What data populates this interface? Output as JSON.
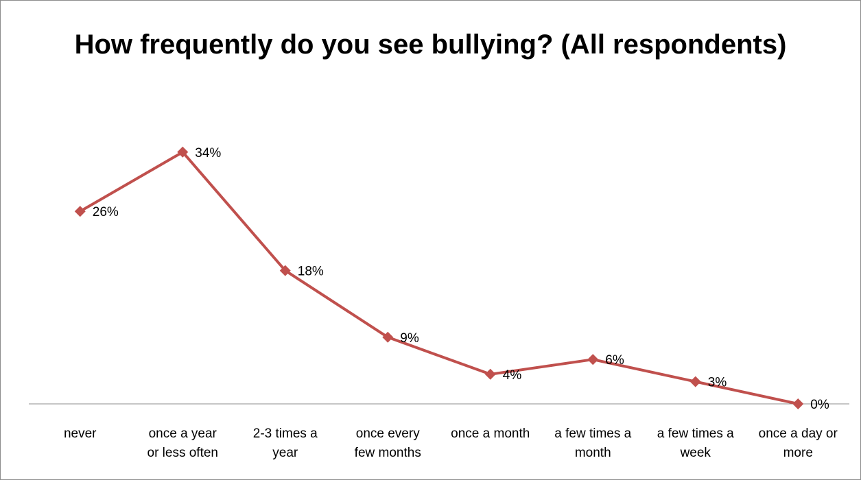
{
  "chart_data": {
    "type": "line",
    "title": "How frequently do you see bullying? (All respondents)",
    "categories": [
      "never",
      "once a year or less often",
      "2-3 times a year",
      "once every few months",
      "once a month",
      "a few times a month",
      "a few times a week",
      "once a day or more"
    ],
    "category_lines": [
      [
        "never"
      ],
      [
        "once a year",
        "or less often"
      ],
      [
        "2-3 times a",
        "year"
      ],
      [
        "once every",
        "few months"
      ],
      [
        "once a month"
      ],
      [
        "a few times a",
        "month"
      ],
      [
        "a few times a",
        "week"
      ],
      [
        "once a day or",
        "more"
      ]
    ],
    "series": [
      {
        "values": [
          26,
          34,
          18,
          9,
          4,
          6,
          3,
          0
        ],
        "labels": [
          "26%",
          "34%",
          "18%",
          "9%",
          "4%",
          "6%",
          "3%",
          "0%"
        ],
        "color": "#c0504d"
      }
    ],
    "ylim": [
      0,
      40
    ],
    "grid": false,
    "legend": "none"
  }
}
